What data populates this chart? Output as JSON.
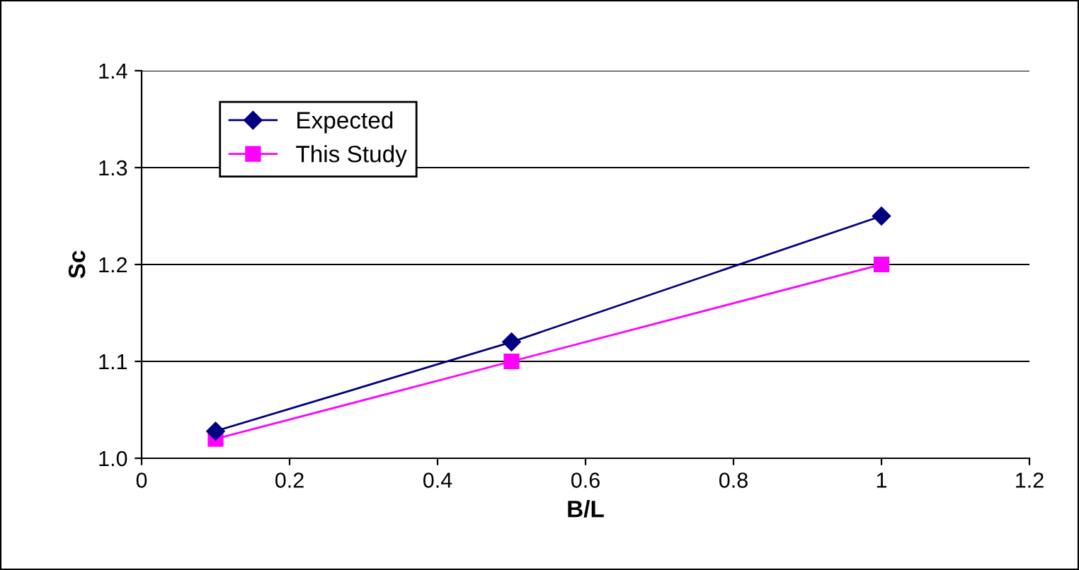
{
  "chart_data": {
    "type": "line",
    "xlabel": "B/L",
    "ylabel": "Sc",
    "x": [
      0.1,
      0.5,
      1
    ],
    "series": [
      {
        "name": "Expected",
        "color": "#000080",
        "marker": "diamond",
        "values": [
          1.028,
          1.12,
          1.25
        ]
      },
      {
        "name": "This Study",
        "color": "#ff00ff",
        "marker": "square",
        "values": [
          1.02,
          1.1,
          1.2
        ]
      }
    ],
    "xlim": [
      0,
      1.2
    ],
    "xticks": [
      0,
      0.2,
      0.4,
      0.6,
      0.8,
      1,
      1.2
    ],
    "ylim": [
      1.0,
      1.4
    ],
    "yticks": [
      {
        "value": 1.0,
        "label": "1.0"
      },
      {
        "value": 1.1,
        "label": "1.1"
      },
      {
        "value": 1.2,
        "label": "1.2"
      },
      {
        "value": 1.3,
        "label": "1.3"
      },
      {
        "value": 1.4,
        "label": "1.4"
      }
    ],
    "grid": "y",
    "legend": "top left",
    "line_style": "solid"
  }
}
